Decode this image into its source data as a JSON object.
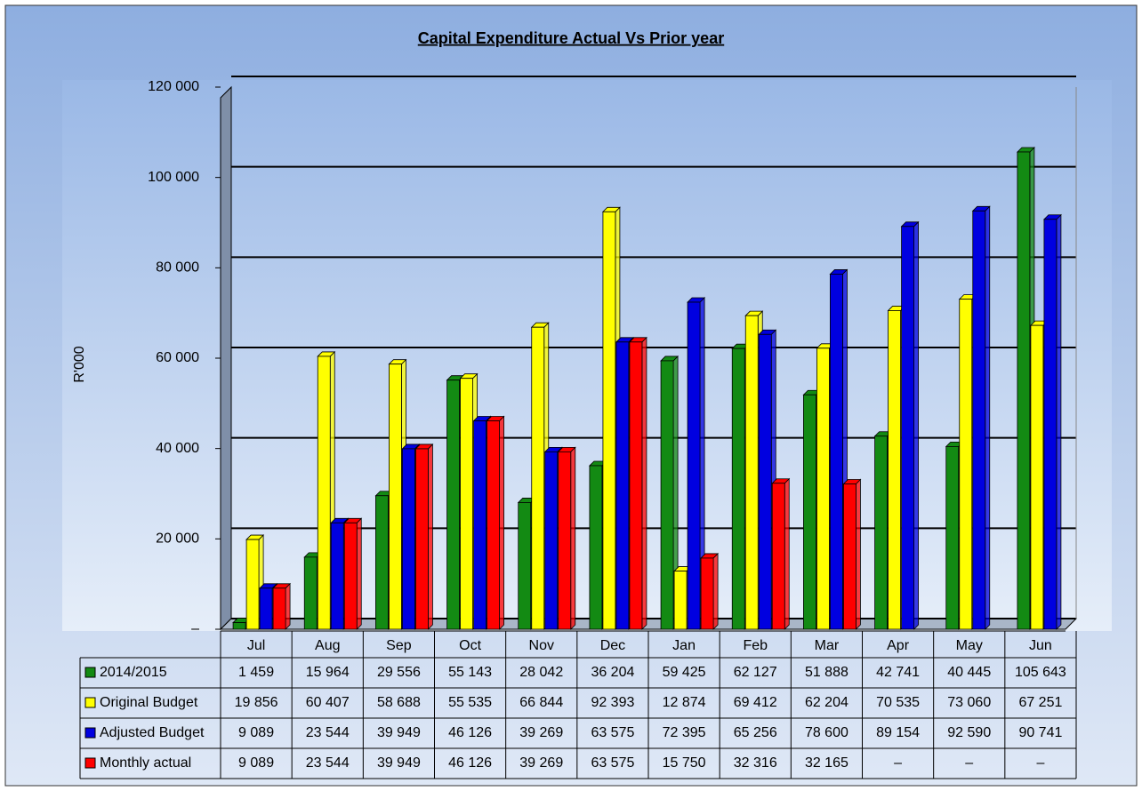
{
  "chart_data": {
    "type": "bar",
    "title": "Capital Expenditure  Actual Vs Prior year",
    "y_label": "R'000",
    "categories": [
      "Jul",
      "Aug",
      "Sep",
      "Oct",
      "Nov",
      "Dec",
      "Jan",
      "Feb",
      "Mar",
      "Apr",
      "May",
      "Jun"
    ],
    "series": [
      {
        "name": "2014/2015",
        "color": "#138a13",
        "values": [
          1459,
          15964,
          29556,
          55143,
          28042,
          36204,
          59425,
          62127,
          51888,
          42741,
          40445,
          105643
        ],
        "value_labels": [
          "1 459",
          "15 964",
          "29 556",
          "55 143",
          "28 042",
          "36 204",
          "59 425",
          "62 127",
          "51 888",
          "42 741",
          "40 445",
          "105 643"
        ]
      },
      {
        "name": "Original Budget",
        "color": "#ffff00",
        "values": [
          19856,
          60407,
          58688,
          55535,
          66844,
          92393,
          12874,
          69412,
          62204,
          70535,
          73060,
          67251
        ],
        "value_labels": [
          "19 856",
          "60 407",
          "58 688",
          "55 535",
          "66 844",
          "92 393",
          "12 874",
          "69 412",
          "62 204",
          "70 535",
          "73 060",
          "67 251"
        ]
      },
      {
        "name": "Adjusted Budget",
        "color": "#0000e0",
        "values": [
          9089,
          23544,
          39949,
          46126,
          39269,
          63575,
          72395,
          65256,
          78600,
          89154,
          92590,
          90741
        ],
        "value_labels": [
          "9 089",
          "23 544",
          "39 949",
          "46 126",
          "39 269",
          "63 575",
          "72 395",
          "65 256",
          "78 600",
          "89 154",
          "92 590",
          "90 741"
        ]
      },
      {
        "name": "Monthly actual",
        "color": "#ff0000",
        "values": [
          9089,
          23544,
          39949,
          46126,
          39269,
          63575,
          15750,
          32316,
          32165,
          null,
          null,
          null
        ],
        "value_labels": [
          "9 089",
          "23 544",
          "39 949",
          "46 126",
          "39 269",
          "63 575",
          "15 750",
          "32 316",
          "32 165",
          "–",
          "–",
          "–"
        ]
      }
    ],
    "ylim": [
      0,
      120000
    ],
    "yticks": [
      {
        "value": 0,
        "label": "–"
      },
      {
        "value": 20000,
        "label": "20 000"
      },
      {
        "value": 40000,
        "label": "40 000"
      },
      {
        "value": 60000,
        "label": "60 000"
      },
      {
        "value": 80000,
        "label": "80 000"
      },
      {
        "value": 100000,
        "label": "100 000"
      },
      {
        "value": 120000,
        "label": "120 000"
      }
    ],
    "grid": true
  }
}
